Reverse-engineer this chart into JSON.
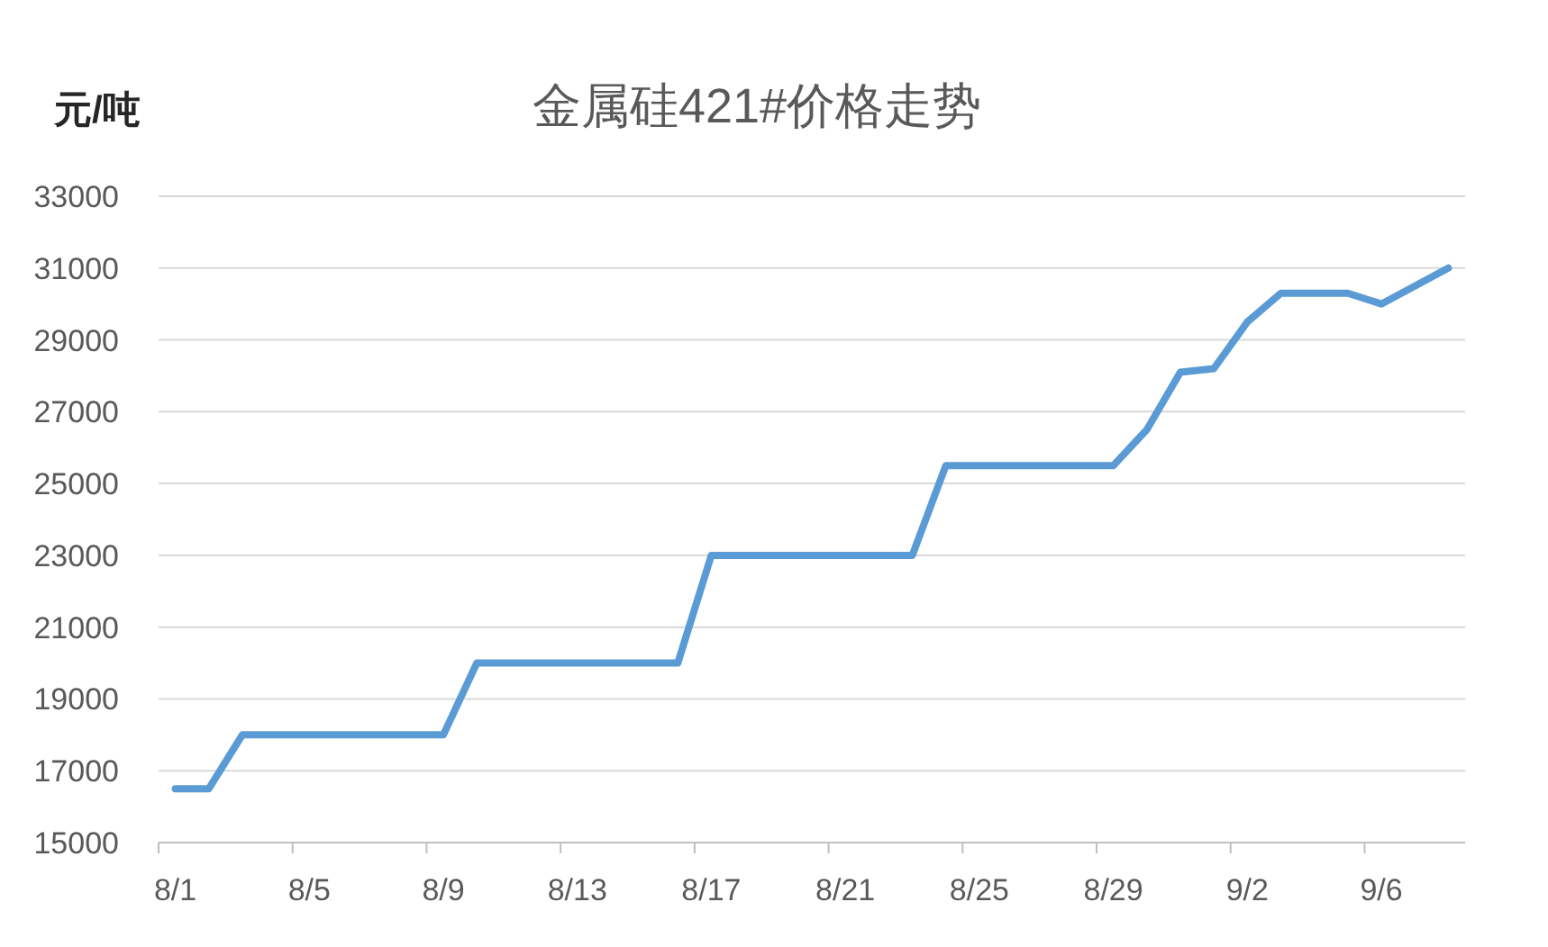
{
  "chart_data": {
    "type": "line",
    "title": "金属硅421#价格走势",
    "ylabel": "元/吨",
    "categories": [
      "8/1",
      null,
      null,
      null,
      "8/5",
      null,
      null,
      null,
      "8/9",
      null,
      null,
      null,
      "8/13",
      null,
      null,
      null,
      "8/17",
      null,
      null,
      null,
      "8/21",
      null,
      null,
      null,
      "8/25",
      null,
      null,
      null,
      "8/29",
      null,
      null,
      null,
      "9/2",
      null,
      null,
      null,
      "9/6",
      null,
      null
    ],
    "series": [
      {
        "color": "#5b9bd5",
        "values": [
          16500,
          16500,
          18000,
          18000,
          18000,
          18000,
          18000,
          18000,
          18000,
          20000,
          20000,
          20000,
          20000,
          20000,
          20000,
          20000,
          23000,
          23000,
          23000,
          23000,
          23000,
          23000,
          23000,
          25500,
          25500,
          25500,
          25500,
          25500,
          25500,
          26500,
          28100,
          28200,
          29500,
          30300,
          30300,
          30300,
          30000,
          30500,
          31000
        ]
      }
    ],
    "ylim": [
      15000,
      33000
    ],
    "yticks": [
      15000,
      17000,
      19000,
      21000,
      23000,
      25000,
      27000,
      29000,
      31000,
      33000
    ],
    "grid": "y",
    "line_style": "solid"
  }
}
